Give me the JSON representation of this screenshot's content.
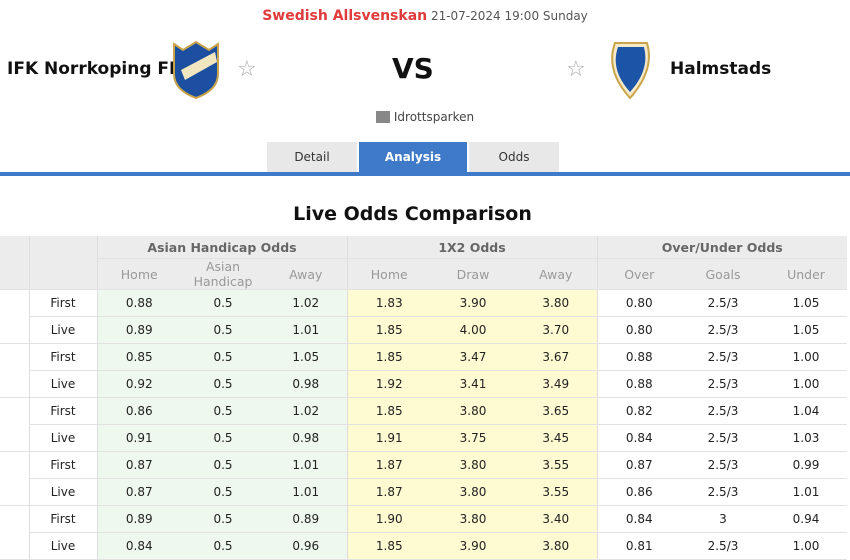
{
  "header": {
    "league": "Swedish Allsvenskan",
    "datetime": "21-07-2024 19:00 Sunday",
    "home_team": "IFK Norrkoping FK",
    "away_team": "Halmstads",
    "vs": "VS",
    "venue": "Idrottsparken"
  },
  "tabs": [
    "Detail",
    "Analysis",
    "Odds"
  ],
  "section_title": "Live Odds Comparison",
  "groups": [
    "Asian Handicap Odds",
    "1X2 Odds",
    "Over/Under Odds"
  ],
  "subheaders": [
    "Home",
    "Asian Handicap",
    "Away",
    "Home",
    "Draw",
    "Away",
    "Over",
    "Goals",
    "Under"
  ],
  "rows": [
    [
      "First",
      "0.88",
      "0.5",
      "1.02",
      "1.83",
      "3.90",
      "3.80",
      "0.80",
      "2.5/3",
      "1.05"
    ],
    [
      "Live",
      "0.89",
      "0.5",
      "1.01",
      "1.85",
      "4.00",
      "3.70",
      "0.80",
      "2.5/3",
      "1.05"
    ],
    [
      "First",
      "0.85",
      "0.5",
      "1.05",
      "1.85",
      "3.47",
      "3.67",
      "0.88",
      "2.5/3",
      "1.00"
    ],
    [
      "Live",
      "0.92",
      "0.5",
      "0.98",
      "1.92",
      "3.41",
      "3.49",
      "0.88",
      "2.5/3",
      "1.00"
    ],
    [
      "First",
      "0.86",
      "0.5",
      "1.02",
      "1.85",
      "3.80",
      "3.65",
      "0.82",
      "2.5/3",
      "1.04"
    ],
    [
      "Live",
      "0.91",
      "0.5",
      "0.98",
      "1.91",
      "3.75",
      "3.45",
      "0.84",
      "2.5/3",
      "1.03"
    ],
    [
      "First",
      "0.87",
      "0.5",
      "1.01",
      "1.87",
      "3.80",
      "3.55",
      "0.87",
      "2.5/3",
      "0.99"
    ],
    [
      "Live",
      "0.87",
      "0.5",
      "1.01",
      "1.87",
      "3.80",
      "3.55",
      "0.86",
      "2.5/3",
      "1.01"
    ],
    [
      "First",
      "0.89",
      "0.5",
      "0.89",
      "1.90",
      "3.80",
      "3.40",
      "0.84",
      "3",
      "0.94"
    ],
    [
      "Live",
      "0.84",
      "0.5",
      "0.96",
      "1.85",
      "3.90",
      "3.80",
      "0.81",
      "2.5/3",
      "1.00"
    ]
  ]
}
